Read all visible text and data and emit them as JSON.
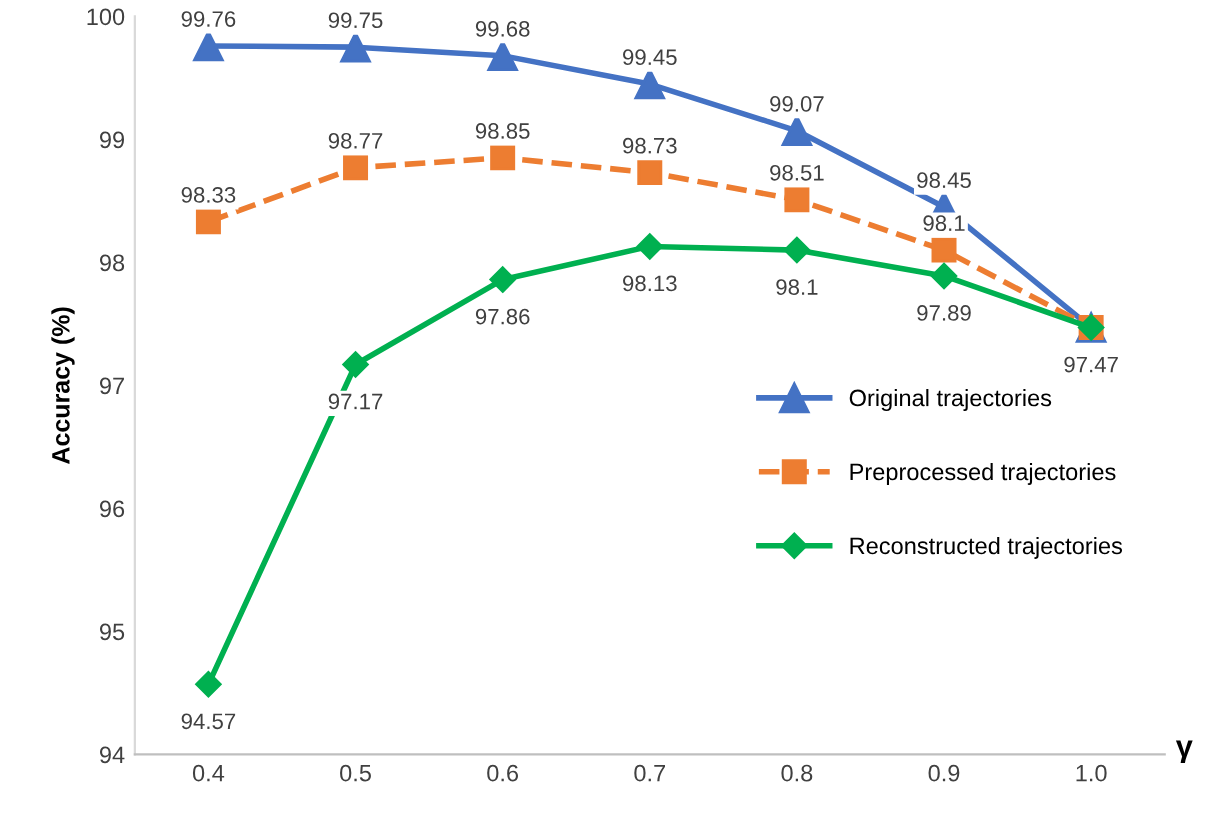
{
  "chart_data": {
    "type": "line",
    "xlabel": "γ",
    "ylabel": "Accuracy (%)",
    "categories": [
      "0.4",
      "0.5",
      "0.6",
      "0.7",
      "0.8",
      "0.9",
      "1.0"
    ],
    "ylim": [
      94,
      100
    ],
    "yticks": [
      94,
      95,
      96,
      97,
      98,
      99,
      100
    ],
    "grid": false,
    "legend": "right",
    "series": [
      {
        "name": "Original trajectories",
        "color": "#4472c4",
        "marker": "triangle",
        "line_style": "solid",
        "values": [
          99.76,
          99.75,
          99.68,
          99.45,
          99.07,
          98.45,
          97.47
        ],
        "value_labels": [
          "99.76",
          "99.75",
          "99.68",
          "99.45",
          "99.07",
          "98.45",
          null
        ]
      },
      {
        "name": "Preprocessed trajectories",
        "color": "#ed7d31",
        "marker": "square",
        "line_style": "dashed",
        "values": [
          98.33,
          98.77,
          98.85,
          98.73,
          98.51,
          98.1,
          97.47
        ],
        "value_labels": [
          "98.33",
          "98.77",
          "98.85",
          "98.73",
          "98.51",
          "98.1",
          null
        ]
      },
      {
        "name": "Reconstructed trajectories",
        "color": "#00b050",
        "marker": "diamond",
        "line_style": "solid",
        "values": [
          94.57,
          97.17,
          97.86,
          98.13,
          98.1,
          97.89,
          97.47
        ],
        "value_labels": [
          "94.57",
          "97.17",
          "97.86",
          "98.13",
          "98.1",
          "97.89",
          "97.47"
        ]
      }
    ]
  }
}
